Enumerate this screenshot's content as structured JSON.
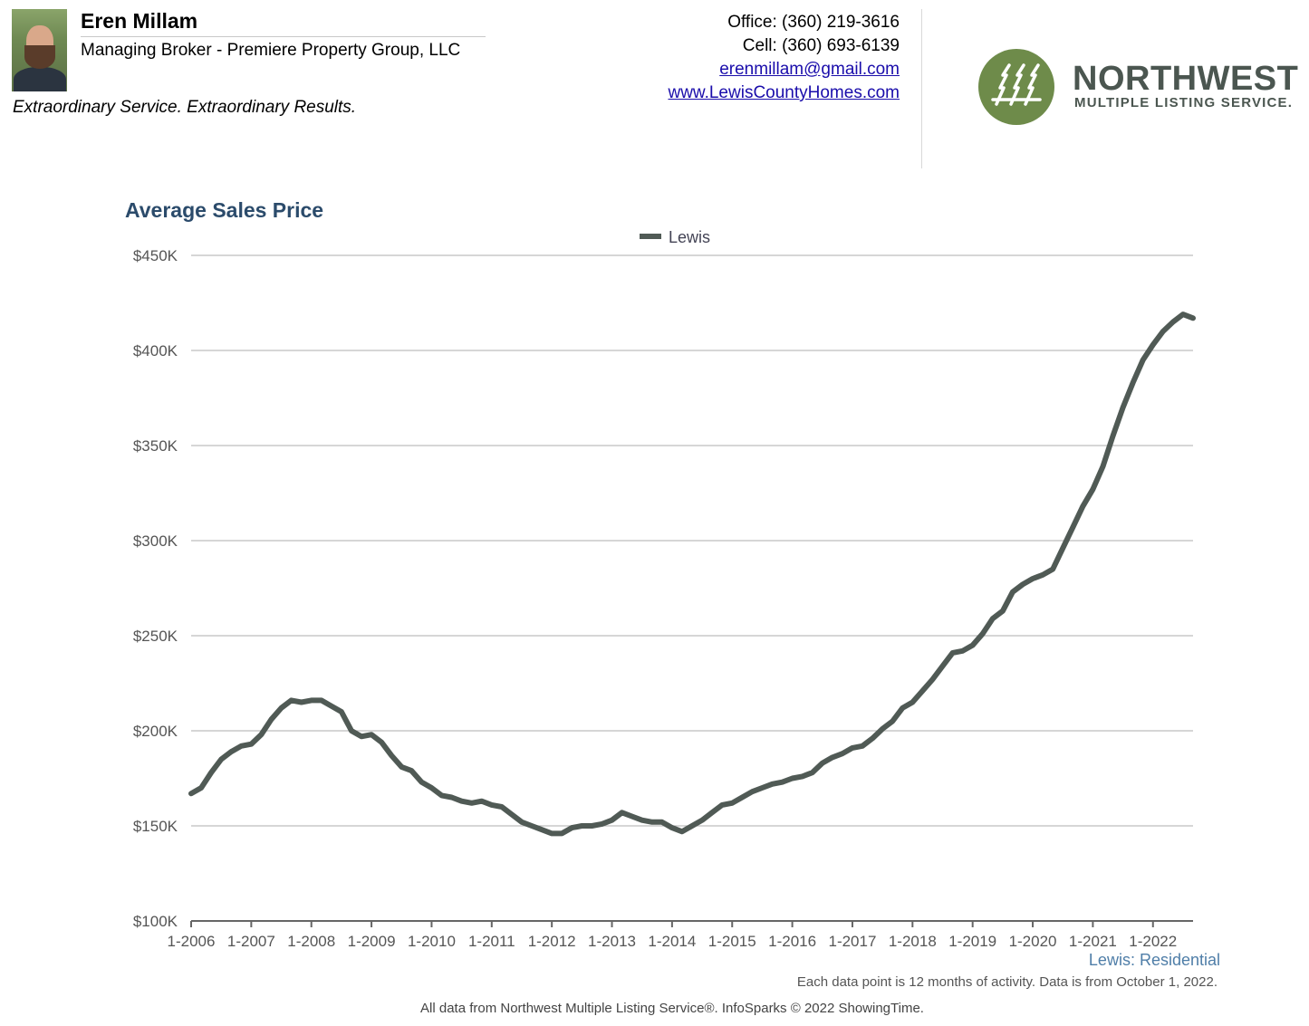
{
  "header": {
    "agent_name": "Eren Millam",
    "agent_title": "Managing Broker - Premiere Property Group, LLC",
    "tagline": "Extraordinary Service. Extraordinary Results.",
    "office": "Office: (360) 219-3616",
    "cell": "Cell: (360) 693-6139",
    "email": "erenmillam@gmail.com",
    "website": "www.LewisCountyHomes.com",
    "logo_line1": "NORTHWEST",
    "logo_line2": "MULTIPLE LISTING SERVICE.",
    "logo_color": "#6e8b4a"
  },
  "chart_title": "Average Sales Price",
  "footer": {
    "series_label": "Lewis: Residential",
    "note": "Each data point is 12 months of activity. Data is from October 1, 2022.",
    "credit": "All data from Northwest Multiple Listing Service®. InfoSparks © 2022 ShowingTime."
  },
  "chart_data": {
    "type": "line",
    "title": "Average Sales Price",
    "xlabel": "",
    "ylabel": "",
    "ylim": [
      100000,
      450000
    ],
    "yticks": [
      "$100K",
      "$150K",
      "$200K",
      "$250K",
      "$300K",
      "$350K",
      "$400K",
      "$450K"
    ],
    "xticks": [
      "1-2006",
      "1-2007",
      "1-2008",
      "1-2009",
      "1-2010",
      "1-2011",
      "1-2012",
      "1-2013",
      "1-2014",
      "1-2015",
      "1-2016",
      "1-2017",
      "1-2018",
      "1-2019",
      "1-2020",
      "1-2021",
      "1-2022"
    ],
    "x_start": "2006-01",
    "x_end": "2022-09",
    "grid": "horizontal",
    "legend": "top-center",
    "series": [
      {
        "name": "Lewis",
        "color": "#505a55",
        "points": [
          [
            "2006-01",
            167000
          ],
          [
            "2006-03",
            170000
          ],
          [
            "2006-05",
            178000
          ],
          [
            "2006-07",
            185000
          ],
          [
            "2006-09",
            189000
          ],
          [
            "2006-11",
            192000
          ],
          [
            "2007-01",
            193000
          ],
          [
            "2007-03",
            198000
          ],
          [
            "2007-05",
            206000
          ],
          [
            "2007-07",
            212000
          ],
          [
            "2007-09",
            216000
          ],
          [
            "2007-11",
            215000
          ],
          [
            "2008-01",
            216000
          ],
          [
            "2008-03",
            216000
          ],
          [
            "2008-05",
            213000
          ],
          [
            "2008-07",
            210000
          ],
          [
            "2008-09",
            200000
          ],
          [
            "2008-11",
            197000
          ],
          [
            "2009-01",
            198000
          ],
          [
            "2009-03",
            194000
          ],
          [
            "2009-05",
            187000
          ],
          [
            "2009-07",
            181000
          ],
          [
            "2009-09",
            179000
          ],
          [
            "2009-11",
            173000
          ],
          [
            "2010-01",
            170000
          ],
          [
            "2010-03",
            166000
          ],
          [
            "2010-05",
            165000
          ],
          [
            "2010-07",
            163000
          ],
          [
            "2010-09",
            162000
          ],
          [
            "2010-11",
            163000
          ],
          [
            "2011-01",
            161000
          ],
          [
            "2011-03",
            160000
          ],
          [
            "2011-05",
            156000
          ],
          [
            "2011-07",
            152000
          ],
          [
            "2011-09",
            150000
          ],
          [
            "2011-11",
            148000
          ],
          [
            "2012-01",
            146000
          ],
          [
            "2012-03",
            146000
          ],
          [
            "2012-05",
            149000
          ],
          [
            "2012-07",
            150000
          ],
          [
            "2012-09",
            150000
          ],
          [
            "2012-11",
            151000
          ],
          [
            "2013-01",
            153000
          ],
          [
            "2013-03",
            157000
          ],
          [
            "2013-05",
            155000
          ],
          [
            "2013-07",
            153000
          ],
          [
            "2013-09",
            152000
          ],
          [
            "2013-11",
            152000
          ],
          [
            "2014-01",
            149000
          ],
          [
            "2014-03",
            147000
          ],
          [
            "2014-05",
            150000
          ],
          [
            "2014-07",
            153000
          ],
          [
            "2014-09",
            157000
          ],
          [
            "2014-11",
            161000
          ],
          [
            "2015-01",
            162000
          ],
          [
            "2015-03",
            165000
          ],
          [
            "2015-05",
            168000
          ],
          [
            "2015-07",
            170000
          ],
          [
            "2015-09",
            172000
          ],
          [
            "2015-11",
            173000
          ],
          [
            "2016-01",
            175000
          ],
          [
            "2016-03",
            176000
          ],
          [
            "2016-05",
            178000
          ],
          [
            "2016-07",
            183000
          ],
          [
            "2016-09",
            186000
          ],
          [
            "2016-11",
            188000
          ],
          [
            "2017-01",
            191000
          ],
          [
            "2017-03",
            192000
          ],
          [
            "2017-05",
            196000
          ],
          [
            "2017-07",
            201000
          ],
          [
            "2017-09",
            205000
          ],
          [
            "2017-11",
            212000
          ],
          [
            "2018-01",
            215000
          ],
          [
            "2018-03",
            221000
          ],
          [
            "2018-05",
            227000
          ],
          [
            "2018-07",
            234000
          ],
          [
            "2018-09",
            241000
          ],
          [
            "2018-11",
            242000
          ],
          [
            "2019-01",
            245000
          ],
          [
            "2019-03",
            251000
          ],
          [
            "2019-05",
            259000
          ],
          [
            "2019-07",
            263000
          ],
          [
            "2019-09",
            273000
          ],
          [
            "2019-11",
            277000
          ],
          [
            "2020-01",
            280000
          ],
          [
            "2020-03",
            282000
          ],
          [
            "2020-05",
            285000
          ],
          [
            "2020-07",
            296000
          ],
          [
            "2020-09",
            307000
          ],
          [
            "2020-11",
            318000
          ],
          [
            "2021-01",
            327000
          ],
          [
            "2021-03",
            339000
          ],
          [
            "2021-05",
            355000
          ],
          [
            "2021-07",
            370000
          ],
          [
            "2021-09",
            383000
          ],
          [
            "2021-11",
            395000
          ],
          [
            "2022-01",
            403000
          ],
          [
            "2022-03",
            410000
          ],
          [
            "2022-05",
            415000
          ],
          [
            "2022-07",
            419000
          ],
          [
            "2022-09",
            417000
          ]
        ]
      }
    ]
  }
}
